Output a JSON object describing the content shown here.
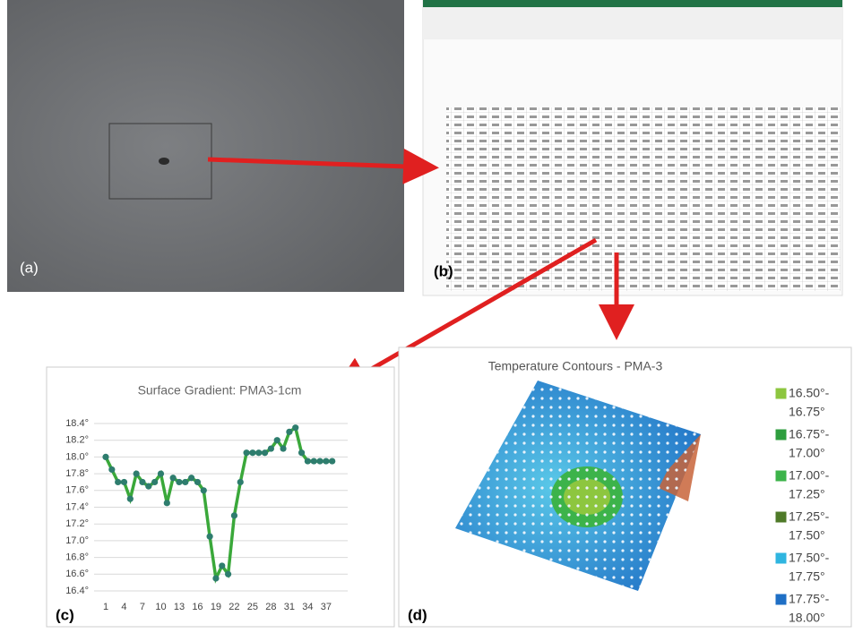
{
  "panels": {
    "a": "(a)",
    "b": "(b)",
    "c": "(c)",
    "d": "(d)"
  },
  "chart_data": {
    "type": "line",
    "title": "Surface Gradient: PMA3-1cm",
    "categories": [
      "1",
      null,
      null,
      "4",
      null,
      null,
      "7",
      null,
      null,
      "10",
      null,
      null,
      "13",
      null,
      null,
      "16",
      null,
      null,
      "19",
      null,
      null,
      "22",
      null,
      null,
      "25",
      null,
      null,
      "28",
      null,
      null,
      "31",
      null,
      null,
      "34",
      null,
      null,
      "37",
      null
    ],
    "values": [
      18.0,
      17.85,
      17.7,
      17.7,
      17.5,
      17.8,
      17.7,
      17.65,
      17.7,
      17.8,
      17.45,
      17.75,
      17.7,
      17.7,
      17.75,
      17.7,
      17.6,
      17.05,
      16.55,
      16.7,
      16.6,
      17.3,
      17.7,
      18.05,
      18.05,
      18.05,
      18.05,
      18.1,
      18.2,
      18.1,
      18.3,
      18.35,
      18.05,
      17.95,
      17.95,
      17.95,
      17.95,
      17.95
    ],
    "color": "#3aa83a",
    "marker_color": "#2e7d6e",
    "ylim": [
      16.4,
      18.4
    ],
    "yticks": [
      {
        "value": 16.4,
        "label": "16.4°"
      },
      {
        "value": 16.6,
        "label": "16.6°"
      },
      {
        "value": 16.8,
        "label": "16.8°"
      },
      {
        "value": 17.0,
        "label": "17.0°"
      },
      {
        "value": 17.2,
        "label": "17.2°"
      },
      {
        "value": 17.4,
        "label": "17.4°"
      },
      {
        "value": 17.6,
        "label": "17.6°"
      },
      {
        "value": 17.8,
        "label": "17.8°"
      },
      {
        "value": 18.0,
        "label": "18.0°"
      },
      {
        "value": 18.2,
        "label": "18.2°"
      },
      {
        "value": 18.4,
        "label": "18.4°"
      }
    ],
    "grid": true
  },
  "contour": {
    "title": "Temperature Contours - PMA-3",
    "legend": [
      {
        "lines": [
          "16.50°-",
          "16.75°"
        ],
        "color": "#8dc63f"
      },
      {
        "lines": [
          "16.75°-",
          "17.00°"
        ],
        "color": "#2e9e3e"
      },
      {
        "lines": [
          "17.00°-",
          "17.25°"
        ],
        "color": "#3cb34a"
      },
      {
        "lines": [
          "17.25°-",
          "17.50°"
        ],
        "color": "#4f7a28"
      },
      {
        "lines": [
          "17.50°-",
          "17.75°"
        ],
        "color": "#2fb5e0"
      },
      {
        "lines": [
          "17.75°-",
          "18.00°"
        ],
        "color": "#1f6fc5"
      }
    ]
  }
}
